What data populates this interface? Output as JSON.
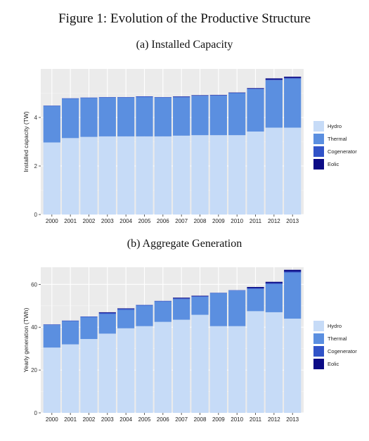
{
  "figure_title": "Figure 1: Evolution of the Productive Structure",
  "colors": {
    "Hydro": "#c6dbf7",
    "Thermal": "#5b8fe0",
    "Cogenerator": "#3153c8",
    "Eolic": "#0b0b86",
    "panel_bg": "#ebebeb",
    "grid": "#ffffff"
  },
  "chart_data": [
    {
      "type": "bar",
      "stacked": true,
      "title": "(a) Installed Capacity",
      "xlabel": "",
      "ylabel": "Installed capacity (TW)",
      "categories": [
        "2000",
        "2001",
        "2002",
        "2003",
        "2004",
        "2005",
        "2006",
        "2007",
        "2008",
        "2009",
        "2010",
        "2011",
        "2012",
        "2013"
      ],
      "yticks": [
        0,
        2,
        4
      ],
      "ylim": [
        0,
        6
      ],
      "grid": true,
      "legend_position": "right",
      "series": [
        {
          "name": "Hydro",
          "values": [
            2.97,
            3.15,
            3.2,
            3.22,
            3.22,
            3.22,
            3.22,
            3.25,
            3.27,
            3.27,
            3.27,
            3.42,
            3.58,
            3.58
          ]
        },
        {
          "name": "Thermal",
          "values": [
            1.5,
            1.62,
            1.6,
            1.6,
            1.6,
            1.62,
            1.6,
            1.58,
            1.62,
            1.63,
            1.73,
            1.75,
            1.95,
            2.02
          ]
        },
        {
          "name": "Cogenerator",
          "values": [
            0.02,
            0.02,
            0.02,
            0.02,
            0.02,
            0.03,
            0.02,
            0.03,
            0.02,
            0.02,
            0.02,
            0.02,
            0.03,
            0.03
          ]
        },
        {
          "name": "Eolic",
          "values": [
            0,
            0,
            0,
            0,
            0,
            0,
            0,
            0.01,
            0.01,
            0.01,
            0.01,
            0.02,
            0.05,
            0.05
          ]
        }
      ]
    },
    {
      "type": "bar",
      "stacked": true,
      "title": "(b) Aggregate Generation",
      "xlabel": "",
      "ylabel": "Yearly generation (TWh)",
      "categories": [
        "2000",
        "2001",
        "2002",
        "2003",
        "2004",
        "2005",
        "2006",
        "2007",
        "2008",
        "2009",
        "2010",
        "2011",
        "2012",
        "2013"
      ],
      "yticks": [
        0,
        20,
        40,
        60
      ],
      "ylim": [
        0,
        68
      ],
      "grid": true,
      "legend_position": "right",
      "series": [
        {
          "name": "Hydro",
          "values": [
            30.5,
            32,
            34.5,
            37,
            39.5,
            40.5,
            42.5,
            43.5,
            45.8,
            40.5,
            40.5,
            47.5,
            47,
            44
          ]
        },
        {
          "name": "Thermal",
          "values": [
            10.5,
            10.8,
            10.2,
            9.2,
            8.6,
            9.6,
            9.5,
            9.6,
            8.4,
            15.4,
            16.6,
            10.4,
            13.2,
            21.5
          ]
        },
        {
          "name": "Cogenerator",
          "values": [
            0.3,
            0.3,
            0.3,
            0.5,
            0.5,
            0.3,
            0.3,
            0.4,
            0.3,
            0.2,
            0.2,
            0.4,
            0.4,
            0.5
          ]
        },
        {
          "name": "Eolic",
          "values": [
            0,
            0,
            0,
            0.3,
            0.2,
            0,
            0,
            0.3,
            0.2,
            0,
            0,
            0.5,
            0.6,
            0.8
          ]
        }
      ]
    }
  ]
}
